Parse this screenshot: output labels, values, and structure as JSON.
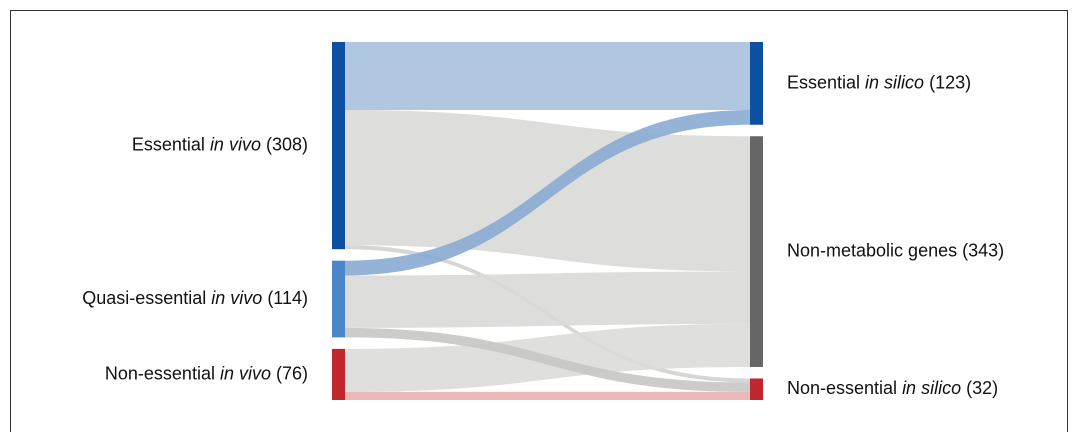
{
  "chart_data": {
    "type": "sankey",
    "nodes": [
      {
        "name": "Essential",
        "italic": "in vivo",
        "value": 308,
        "value_label": "(308)",
        "color": "#0d4fa0",
        "column": 0
      },
      {
        "name": "Quasi-essential",
        "italic": "in vivo",
        "value": 114,
        "value_label": "(114)",
        "color": "#4a86c8",
        "column": 0
      },
      {
        "name": "Non-essential",
        "italic": "in vivo",
        "value": 76,
        "value_label": "(76)",
        "color": "#c0272d",
        "column": 0
      },
      {
        "name": "Essential",
        "italic": "in silico",
        "value": 123,
        "value_label": "(123)",
        "color": "#0d4fa0",
        "column": 1
      },
      {
        "name": "Non-metabolic genes",
        "italic": null,
        "value": 343,
        "value_label": "(343)",
        "color": "#666666",
        "column": 1
      },
      {
        "name": "Non-essential",
        "italic": "in silico",
        "value": 32,
        "value_label": "(32)",
        "color": "#c0272d",
        "column": 1
      }
    ],
    "links": [
      {
        "source": 0,
        "target": 3,
        "value": 101,
        "color": "#a8c0dc"
      },
      {
        "source": 0,
        "target": 4,
        "value": 201,
        "color": "#d9d9d7"
      },
      {
        "source": 0,
        "target": 5,
        "value": 6,
        "color": "#d2d2d0"
      },
      {
        "source": 1,
        "target": 3,
        "value": 22,
        "color": "#8aabd3"
      },
      {
        "source": 1,
        "target": 4,
        "value": 78,
        "color": "#d9d9d7"
      },
      {
        "source": 1,
        "target": 5,
        "value": 14,
        "color": "#c6c6c4"
      },
      {
        "source": 2,
        "target": 4,
        "value": 64,
        "color": "#dcdcda"
      },
      {
        "source": 2,
        "target": 5,
        "value": 12,
        "color": "#e8b0b0"
      }
    ]
  }
}
